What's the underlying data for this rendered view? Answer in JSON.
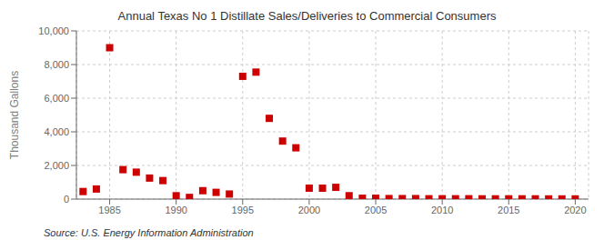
{
  "chart_data": {
    "type": "scatter",
    "title": "Annual Texas No 1 Distillate Sales/Deliveries to Commercial Consumers",
    "ylabel": "Thousand Gallons",
    "annotations": [
      "Source: U.S. Energy Information Administration"
    ],
    "color": "#cc0000",
    "marker": "square",
    "grid": true,
    "xlim": [
      1982.5,
      2021
    ],
    "xticks": [
      1985,
      1990,
      1995,
      2000,
      2005,
      2010,
      2015,
      2020
    ],
    "ylim": [
      0,
      10000
    ],
    "yticks": [
      0,
      {
        "value": 2000,
        "label": "2,000"
      },
      {
        "value": 4000,
        "label": "4,000"
      },
      {
        "value": 6000,
        "label": "6,000"
      },
      {
        "value": 8000,
        "label": "8,000"
      },
      {
        "value": 10000,
        "label": "10,000"
      }
    ],
    "x": [
      1983,
      1984,
      1985,
      1986,
      1987,
      1988,
      1989,
      1990,
      1991,
      1992,
      1993,
      1994,
      1995,
      1996,
      1997,
      1998,
      1999,
      2000,
      2001,
      2002,
      2003,
      2004,
      2005,
      2006,
      2007,
      2008,
      2009,
      2010,
      2011,
      2012,
      2013,
      2014,
      2015,
      2016,
      2017,
      2018,
      2019,
      2020
    ],
    "values": [
      450,
      600,
      9000,
      1750,
      1600,
      1250,
      1100,
      200,
      100,
      500,
      400,
      300,
      7300,
      7550,
      4800,
      3450,
      3050,
      650,
      650,
      700,
      200,
      50,
      50,
      30,
      30,
      30,
      20,
      20,
      20,
      20,
      15,
      15,
      15,
      15,
      15,
      10,
      10,
      10
    ]
  }
}
